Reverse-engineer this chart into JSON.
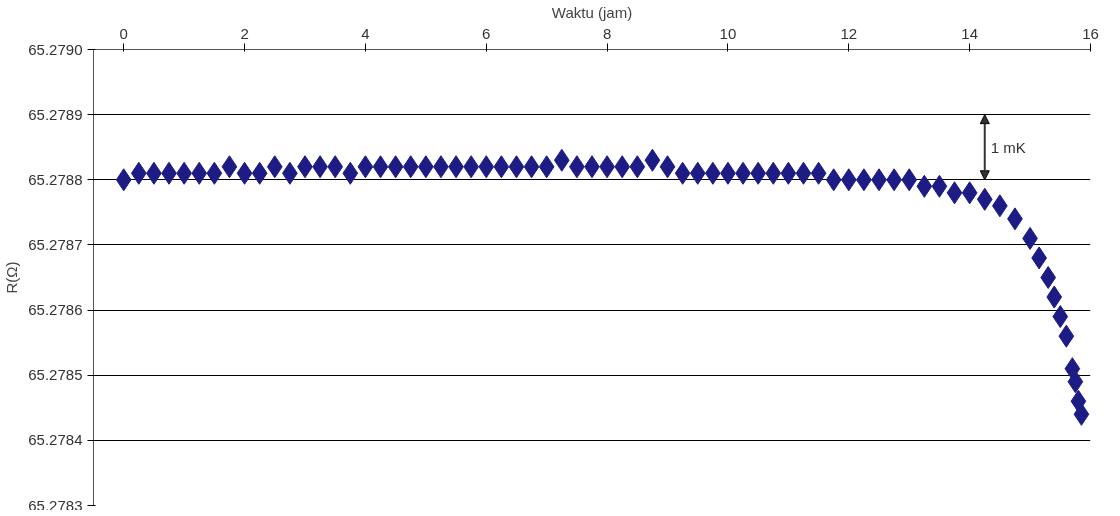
{
  "chart_data": {
    "type": "scatter",
    "xlabel": "Waktu (jam)",
    "ylabel": "R(Ω)",
    "x": [
      0,
      0.25,
      0.5,
      0.75,
      1,
      1.25,
      1.5,
      1.75,
      2,
      2.25,
      2.5,
      2.75,
      3,
      3.25,
      3.5,
      3.75,
      4,
      4.25,
      4.5,
      4.75,
      5,
      5.25,
      5.5,
      5.75,
      6,
      6.25,
      6.5,
      6.75,
      7,
      7.25,
      7.5,
      7.75,
      8,
      8.25,
      8.5,
      8.75,
      9,
      9.25,
      9.5,
      9.75,
      10,
      10.25,
      10.5,
      10.75,
      11,
      11.25,
      11.5,
      11.75,
      12,
      12.25,
      12.5,
      12.75,
      13,
      13.25,
      13.5,
      13.75,
      14,
      14.25,
      14.5,
      14.75,
      15,
      15.15,
      15.3,
      15.4,
      15.5,
      15.6,
      15.7,
      15.75,
      15.8,
      15.85
    ],
    "series": [
      {
        "color": "#1c1c84",
        "values": [
          65.2788,
          65.27881,
          65.27881,
          65.27881,
          65.27881,
          65.27881,
          65.27881,
          65.27882,
          65.27881,
          65.27881,
          65.27882,
          65.27881,
          65.27882,
          65.27882,
          65.27882,
          65.27881,
          65.27882,
          65.27882,
          65.27882,
          65.27882,
          65.27882,
          65.27882,
          65.27882,
          65.27882,
          65.27882,
          65.27882,
          65.27882,
          65.27882,
          65.27882,
          65.27883,
          65.27882,
          65.27882,
          65.27882,
          65.27882,
          65.27882,
          65.27883,
          65.27882,
          65.27881,
          65.27881,
          65.27881,
          65.27881,
          65.27881,
          65.27881,
          65.27881,
          65.27881,
          65.27881,
          65.27881,
          65.2788,
          65.2788,
          65.2788,
          65.2788,
          65.2788,
          65.2788,
          65.27879,
          65.27879,
          65.27878,
          65.27878,
          65.27877,
          65.27876,
          65.27874,
          65.27871,
          65.27868,
          65.27865,
          65.27862,
          65.27859,
          65.27856,
          65.27851,
          65.27849,
          65.27846,
          65.27844
        ]
      }
    ],
    "marker": "diamond",
    "xlim": [
      -0.5,
      16
    ],
    "xticks": [
      0,
      2,
      4,
      6,
      8,
      10,
      12,
      14,
      16
    ],
    "ylim": [
      65.2783,
      65.279
    ],
    "yticks": [
      {
        "value": 65.2783,
        "label": "65.2783"
      },
      {
        "value": 65.2784,
        "label": "65.2784"
      },
      {
        "value": 65.2785,
        "label": "65.2785"
      },
      {
        "value": 65.2786,
        "label": "65.2786"
      },
      {
        "value": 65.2787,
        "label": "65.2787"
      },
      {
        "value": 65.2788,
        "label": "65.2788"
      },
      {
        "value": 65.2789,
        "label": "65.2789"
      },
      {
        "value": 65.279,
        "label": "65.2790"
      }
    ],
    "grid": "y",
    "annotations": [
      "1 mK"
    ]
  }
}
